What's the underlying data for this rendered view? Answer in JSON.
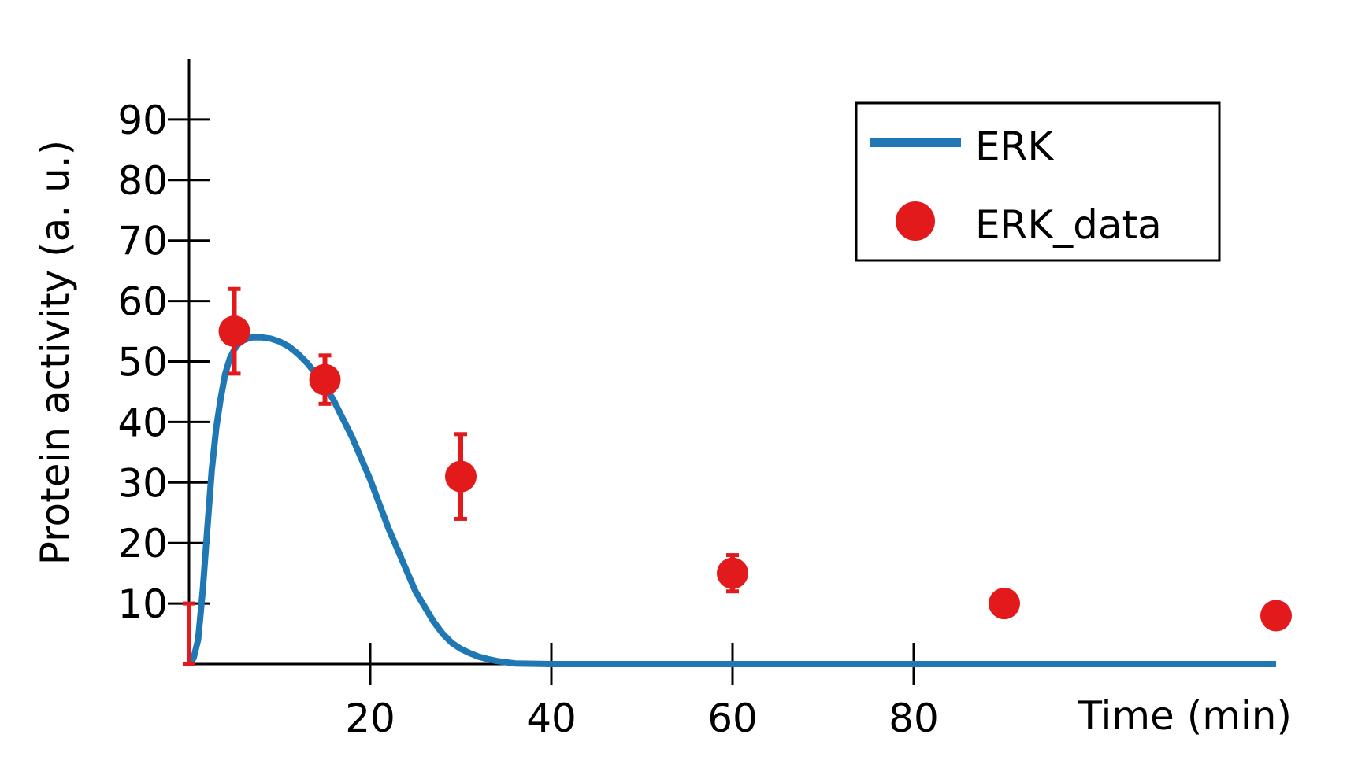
{
  "chart_data": {
    "type": "line",
    "title": "",
    "xlabel": "Time (min)",
    "ylabel": "Protein activity (a. u.)",
    "xlim": [
      0,
      120
    ],
    "ylim": [
      0,
      100
    ],
    "x_ticks": [
      20,
      40,
      60,
      80
    ],
    "y_ticks": [
      10,
      20,
      30,
      40,
      50,
      60,
      70,
      80,
      90
    ],
    "grid": false,
    "legend_position": "top-right",
    "colors": {
      "model": "#1f77b4",
      "data": "#e31a1c"
    },
    "series": [
      {
        "name": "ERK",
        "kind": "line",
        "x": [
          0,
          0.5,
          1,
          1.5,
          2,
          2.5,
          3,
          3.5,
          4,
          4.5,
          5,
          5.5,
          6,
          6.5,
          7,
          8,
          9,
          10,
          11,
          12,
          13,
          14,
          15,
          16,
          17,
          18,
          19,
          20,
          21,
          22,
          23,
          24,
          25,
          26,
          27,
          28,
          29,
          30,
          31,
          32,
          33,
          34,
          35,
          36,
          40,
          60,
          80,
          100,
          120
        ],
        "y": [
          0,
          1,
          4,
          12,
          22,
          32,
          39,
          44,
          48,
          50.5,
          52,
          53,
          53.5,
          53.8,
          54,
          54,
          53.8,
          53.3,
          52.5,
          51.3,
          49.8,
          48,
          46,
          43.5,
          40.5,
          37.5,
          34,
          30.5,
          26.5,
          22.5,
          19,
          15.5,
          12,
          9.5,
          7,
          5,
          3.5,
          2.5,
          1.8,
          1.2,
          0.8,
          0.5,
          0.3,
          0.1,
          0,
          0,
          0,
          0,
          0
        ]
      },
      {
        "name": "ERK_data",
        "kind": "scatter",
        "x": [
          0,
          5,
          15,
          30,
          60,
          90,
          120
        ],
        "y": [
          0,
          55,
          47,
          31,
          15,
          10,
          8
        ],
        "yerr": [
          10,
          7,
          4,
          7,
          3,
          1,
          2
        ]
      }
    ]
  }
}
